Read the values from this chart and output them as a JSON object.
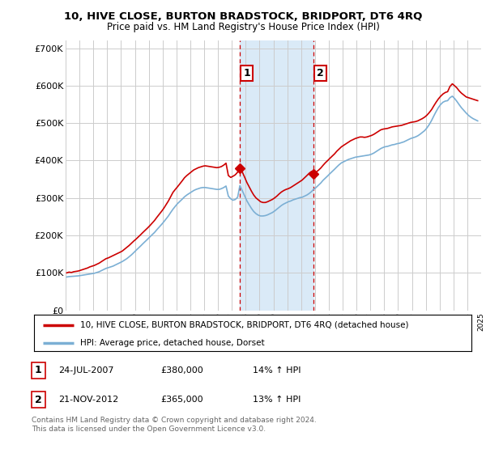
{
  "title": "10, HIVE CLOSE, BURTON BRADSTOCK, BRIDPORT, DT6 4RQ",
  "subtitle": "Price paid vs. HM Land Registry's House Price Index (HPI)",
  "legend_line1": "10, HIVE CLOSE, BURTON BRADSTOCK, BRIDPORT, DT6 4RQ (detached house)",
  "legend_line2": "HPI: Average price, detached house, Dorset",
  "footnote": "Contains HM Land Registry data © Crown copyright and database right 2024.\nThis data is licensed under the Open Government Licence v3.0.",
  "transaction1_label": "1",
  "transaction1_date": "24-JUL-2007",
  "transaction1_price": "£380,000",
  "transaction1_hpi": "14% ↑ HPI",
  "transaction2_label": "2",
  "transaction2_date": "21-NOV-2012",
  "transaction2_price": "£365,000",
  "transaction2_hpi": "13% ↑ HPI",
  "property_color": "#cc0000",
  "hpi_color": "#7bafd4",
  "background_color": "#ffffff",
  "grid_color": "#cccccc",
  "highlight_color": "#daeaf7",
  "ylim": [
    0,
    720000
  ],
  "yticks": [
    0,
    100000,
    200000,
    300000,
    400000,
    500000,
    600000,
    700000
  ],
  "ytick_labels": [
    "£0",
    "£100K",
    "£200K",
    "£300K",
    "£400K",
    "£500K",
    "£600K",
    "£700K"
  ],
  "transaction1_year": 2007.58,
  "transaction2_year": 2012.9,
  "transaction1_value": 380000,
  "transaction2_value": 365000,
  "prop_data_x": [
    1995.08,
    1995.25,
    1995.42,
    1995.58,
    1995.75,
    1995.92,
    1996.08,
    1996.25,
    1996.42,
    1996.58,
    1996.75,
    1996.92,
    1997.08,
    1997.25,
    1997.42,
    1997.58,
    1997.75,
    1997.92,
    1998.08,
    1998.25,
    1998.42,
    1998.58,
    1998.75,
    1998.92,
    1999.08,
    1999.25,
    1999.42,
    1999.58,
    1999.75,
    1999.92,
    2000.08,
    2000.25,
    2000.42,
    2000.58,
    2000.75,
    2000.92,
    2001.08,
    2001.25,
    2001.42,
    2001.58,
    2001.75,
    2001.92,
    2002.08,
    2002.25,
    2002.42,
    2002.58,
    2002.75,
    2002.92,
    2003.08,
    2003.25,
    2003.42,
    2003.58,
    2003.75,
    2003.92,
    2004.08,
    2004.25,
    2004.42,
    2004.58,
    2004.75,
    2004.92,
    2005.08,
    2005.25,
    2005.42,
    2005.58,
    2005.75,
    2005.92,
    2006.08,
    2006.25,
    2006.42,
    2006.58,
    2006.75,
    2006.92,
    2007.08,
    2007.25,
    2007.42,
    2007.58,
    2007.75,
    2007.92,
    2008.08,
    2008.25,
    2008.42,
    2008.58,
    2008.75,
    2008.92,
    2009.08,
    2009.25,
    2009.42,
    2009.58,
    2009.75,
    2009.92,
    2010.08,
    2010.25,
    2010.42,
    2010.58,
    2010.75,
    2010.92,
    2011.08,
    2011.25,
    2011.42,
    2011.58,
    2011.75,
    2011.92,
    2012.08,
    2012.25,
    2012.42,
    2012.58,
    2012.75,
    2012.9,
    2013.08,
    2013.25,
    2013.42,
    2013.58,
    2013.75,
    2013.92,
    2014.08,
    2014.25,
    2014.42,
    2014.58,
    2014.75,
    2014.92,
    2015.08,
    2015.25,
    2015.42,
    2015.58,
    2015.75,
    2015.92,
    2016.08,
    2016.25,
    2016.42,
    2016.58,
    2016.75,
    2016.92,
    2017.08,
    2017.25,
    2017.42,
    2017.58,
    2017.75,
    2017.92,
    2018.08,
    2018.25,
    2018.42,
    2018.58,
    2018.75,
    2018.92,
    2019.08,
    2019.25,
    2019.42,
    2019.58,
    2019.75,
    2019.92,
    2020.08,
    2020.25,
    2020.42,
    2020.58,
    2020.75,
    2020.92,
    2021.08,
    2021.25,
    2021.42,
    2021.58,
    2021.75,
    2021.92,
    2022.08,
    2022.25,
    2022.42,
    2022.58,
    2022.75,
    2022.92,
    2023.08,
    2023.25,
    2023.42,
    2023.58,
    2023.75,
    2023.92,
    2024.08,
    2024.25,
    2024.42,
    2024.58,
    2024.75
  ],
  "prop_data_y": [
    100000,
    102000,
    101000,
    103000,
    104000,
    105000,
    107000,
    109000,
    111000,
    113000,
    116000,
    118000,
    120000,
    123000,
    126000,
    130000,
    134000,
    138000,
    140000,
    143000,
    146000,
    149000,
    152000,
    155000,
    158000,
    163000,
    168000,
    173000,
    179000,
    185000,
    190000,
    196000,
    202000,
    208000,
    214000,
    220000,
    226000,
    233000,
    240000,
    248000,
    256000,
    264000,
    272000,
    282000,
    292000,
    303000,
    315000,
    323000,
    330000,
    338000,
    346000,
    354000,
    360000,
    365000,
    370000,
    375000,
    378000,
    381000,
    383000,
    385000,
    386000,
    385000,
    384000,
    383000,
    382000,
    381000,
    382000,
    384000,
    388000,
    393000,
    360000,
    355000,
    358000,
    362000,
    369000,
    380000,
    370000,
    356000,
    342000,
    330000,
    318000,
    308000,
    300000,
    295000,
    290000,
    288000,
    288000,
    290000,
    293000,
    296000,
    300000,
    305000,
    311000,
    316000,
    320000,
    323000,
    325000,
    328000,
    332000,
    336000,
    340000,
    344000,
    348000,
    354000,
    360000,
    366000,
    371000,
    365000,
    369000,
    374000,
    380000,
    387000,
    394000,
    400000,
    406000,
    412000,
    418000,
    425000,
    431000,
    437000,
    441000,
    445000,
    449000,
    453000,
    456000,
    459000,
    461000,
    463000,
    463000,
    462000,
    463000,
    465000,
    467000,
    470000,
    474000,
    478000,
    482000,
    484000,
    485000,
    486000,
    488000,
    490000,
    491000,
    492000,
    493000,
    494000,
    496000,
    498000,
    500000,
    502000,
    503000,
    504000,
    506000,
    509000,
    512000,
    516000,
    521000,
    528000,
    536000,
    546000,
    556000,
    565000,
    572000,
    578000,
    582000,
    584000,
    598000,
    605000,
    600000,
    594000,
    586000,
    580000,
    575000,
    570000,
    568000,
    566000,
    564000,
    562000,
    560000
  ],
  "hpi_data_x": [
    1995.08,
    1995.25,
    1995.42,
    1995.58,
    1995.75,
    1995.92,
    1996.08,
    1996.25,
    1996.42,
    1996.58,
    1996.75,
    1996.92,
    1997.08,
    1997.25,
    1997.42,
    1997.58,
    1997.75,
    1997.92,
    1998.08,
    1998.25,
    1998.42,
    1998.58,
    1998.75,
    1998.92,
    1999.08,
    1999.25,
    1999.42,
    1999.58,
    1999.75,
    1999.92,
    2000.08,
    2000.25,
    2000.42,
    2000.58,
    2000.75,
    2000.92,
    2001.08,
    2001.25,
    2001.42,
    2001.58,
    2001.75,
    2001.92,
    2002.08,
    2002.25,
    2002.42,
    2002.58,
    2002.75,
    2002.92,
    2003.08,
    2003.25,
    2003.42,
    2003.58,
    2003.75,
    2003.92,
    2004.08,
    2004.25,
    2004.42,
    2004.58,
    2004.75,
    2004.92,
    2005.08,
    2005.25,
    2005.42,
    2005.58,
    2005.75,
    2005.92,
    2006.08,
    2006.25,
    2006.42,
    2006.58,
    2006.75,
    2006.92,
    2007.08,
    2007.25,
    2007.42,
    2007.58,
    2007.75,
    2007.92,
    2008.08,
    2008.25,
    2008.42,
    2008.58,
    2008.75,
    2008.92,
    2009.08,
    2009.25,
    2009.42,
    2009.58,
    2009.75,
    2009.92,
    2010.08,
    2010.25,
    2010.42,
    2010.58,
    2010.75,
    2010.92,
    2011.08,
    2011.25,
    2011.42,
    2011.58,
    2011.75,
    2011.92,
    2012.08,
    2012.25,
    2012.42,
    2012.58,
    2012.75,
    2012.9,
    2013.08,
    2013.25,
    2013.42,
    2013.58,
    2013.75,
    2013.92,
    2014.08,
    2014.25,
    2014.42,
    2014.58,
    2014.75,
    2014.92,
    2015.08,
    2015.25,
    2015.42,
    2015.58,
    2015.75,
    2015.92,
    2016.08,
    2016.25,
    2016.42,
    2016.58,
    2016.75,
    2016.92,
    2017.08,
    2017.25,
    2017.42,
    2017.58,
    2017.75,
    2017.92,
    2018.08,
    2018.25,
    2018.42,
    2018.58,
    2018.75,
    2018.92,
    2019.08,
    2019.25,
    2019.42,
    2019.58,
    2019.75,
    2019.92,
    2020.08,
    2020.25,
    2020.42,
    2020.58,
    2020.75,
    2020.92,
    2021.08,
    2021.25,
    2021.42,
    2021.58,
    2021.75,
    2021.92,
    2022.08,
    2022.25,
    2022.42,
    2022.58,
    2022.75,
    2022.92,
    2023.08,
    2023.25,
    2023.42,
    2023.58,
    2023.75,
    2023.92,
    2024.08,
    2024.25,
    2024.42,
    2024.58,
    2024.75
  ],
  "hpi_data_y": [
    89000,
    90000,
    90500,
    91000,
    91500,
    92000,
    93000,
    94000,
    95000,
    96000,
    97000,
    98000,
    99000,
    101000,
    103000,
    106000,
    109000,
    112000,
    114000,
    116000,
    118000,
    121000,
    124000,
    127000,
    130000,
    134000,
    138000,
    143000,
    148000,
    154000,
    160000,
    166000,
    172000,
    178000,
    184000,
    190000,
    196000,
    202000,
    208000,
    215000,
    222000,
    229000,
    236000,
    244000,
    252000,
    261000,
    270000,
    278000,
    285000,
    291000,
    297000,
    303000,
    308000,
    312000,
    316000,
    320000,
    323000,
    325000,
    327000,
    328000,
    328000,
    327000,
    326000,
    325000,
    324000,
    323000,
    323000,
    325000,
    328000,
    332000,
    305000,
    298000,
    294000,
    296000,
    302000,
    333000,
    320000,
    306000,
    293000,
    282000,
    272000,
    264000,
    258000,
    254000,
    252000,
    252000,
    253000,
    255000,
    258000,
    261000,
    265000,
    270000,
    275000,
    280000,
    284000,
    287000,
    290000,
    292000,
    295000,
    297000,
    299000,
    301000,
    302000,
    305000,
    308000,
    312000,
    317000,
    323000,
    328000,
    334000,
    340000,
    347000,
    353000,
    359000,
    365000,
    371000,
    377000,
    383000,
    389000,
    394000,
    397000,
    400000,
    403000,
    405000,
    407000,
    409000,
    410000,
    411000,
    412000,
    413000,
    414000,
    415000,
    417000,
    420000,
    424000,
    428000,
    432000,
    435000,
    437000,
    438000,
    440000,
    442000,
    443000,
    445000,
    446000,
    448000,
    450000,
    453000,
    456000,
    459000,
    461000,
    463000,
    466000,
    470000,
    475000,
    480000,
    487000,
    496000,
    507000,
    519000,
    531000,
    542000,
    550000,
    556000,
    559000,
    560000,
    568000,
    572000,
    566000,
    558000,
    549000,
    541000,
    534000,
    527000,
    521000,
    516000,
    512000,
    509000,
    506000
  ]
}
